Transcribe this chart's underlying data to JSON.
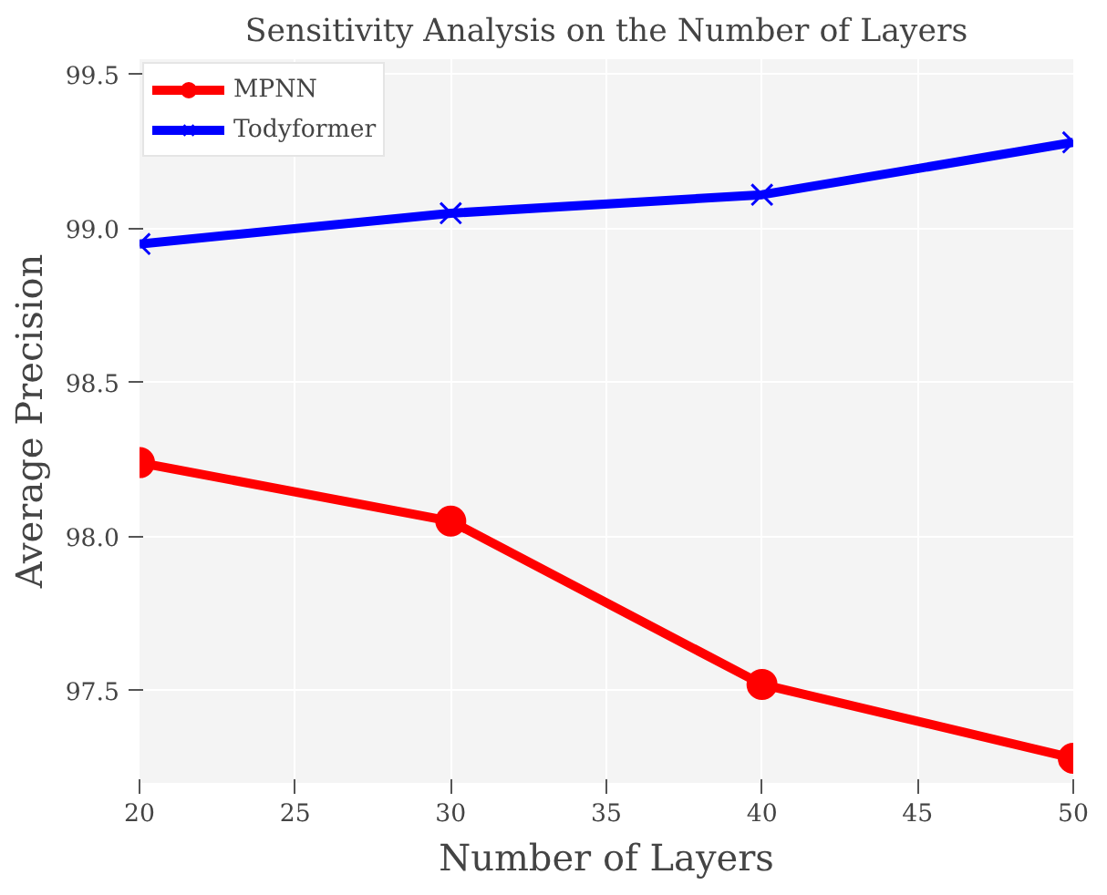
{
  "chart_data": {
    "type": "line",
    "title": "Sensitivity Analysis on the Number of Layers",
    "xlabel": "Number of Layers",
    "ylabel": "Average Precision",
    "x": [
      20,
      30,
      40,
      50
    ],
    "series": [
      {
        "name": "MPNN",
        "color": "#ff0000",
        "marker": "circle",
        "values": [
          98.24,
          98.05,
          97.52,
          97.28
        ]
      },
      {
        "name": "Todyformer",
        "color": "#0000ff",
        "marker": "cross",
        "values": [
          98.95,
          99.05,
          99.11,
          99.28
        ]
      }
    ],
    "xlim": [
      20,
      50
    ],
    "ylim": [
      97.2,
      99.55
    ],
    "xticks": [
      20,
      25,
      30,
      35,
      40,
      45,
      50
    ],
    "yticks": [
      {
        "value": 97.5,
        "label": "97.5"
      },
      {
        "value": 98,
        "label": "98.0"
      },
      {
        "value": 98.5,
        "label": "98.5"
      },
      {
        "value": 99,
        "label": "99.0"
      },
      {
        "value": 99.5,
        "label": "99.5"
      }
    ],
    "grid": true,
    "legend": "top left",
    "line_style": "solid"
  }
}
